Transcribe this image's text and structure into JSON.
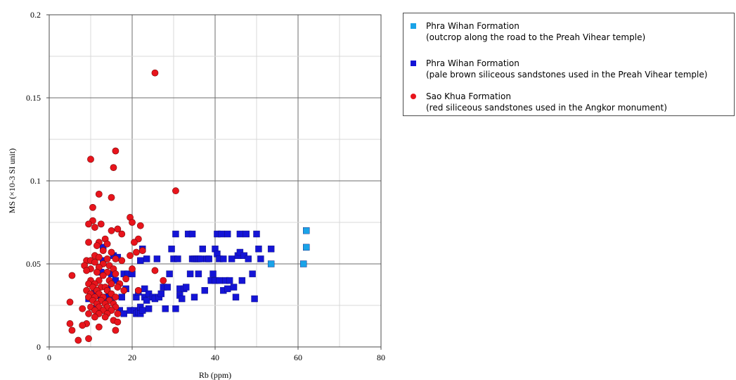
{
  "chart_data": {
    "type": "scatter",
    "title": "",
    "xlabel": "Rb (ppm)",
    "ylabel": "MS (×10-3 SI unit)",
    "xlim": [
      0,
      80
    ],
    "ylim": [
      0,
      0.2
    ],
    "x_ticks": [
      "0",
      "20",
      "40",
      "60",
      "80"
    ],
    "y_ticks": [
      "0",
      "0.05",
      "0.1",
      "0.15",
      "0.2"
    ],
    "grid": true,
    "legend_position": "right",
    "series": [
      {
        "name": "Phra Wihan Formation",
        "description": "(outcrop along the road to the Preah Vihear temple)",
        "marker": "square",
        "color": "#1aa3e8",
        "points": [
          [
            53.5,
            0.05
          ],
          [
            61.3,
            0.05
          ],
          [
            62.0,
            0.06
          ],
          [
            62.0,
            0.07
          ]
        ]
      },
      {
        "name": "Phra Wihan Formation",
        "description": "(pale brown siliceous sandstones used in the Preah Vihear temple)",
        "marker": "square",
        "color": "#1414d6",
        "points": [
          [
            9.5,
            0.029
          ],
          [
            10.5,
            0.032
          ],
          [
            11,
            0.033
          ],
          [
            11.5,
            0.026
          ],
          [
            12,
            0.031
          ],
          [
            12.5,
            0.028
          ],
          [
            12.5,
            0.045
          ],
          [
            13,
            0.052
          ],
          [
            13,
            0.06
          ],
          [
            13.5,
            0.03
          ],
          [
            14,
            0.035
          ],
          [
            14.5,
            0.03
          ],
          [
            15,
            0.03
          ],
          [
            15,
            0.044
          ],
          [
            15.5,
            0.055
          ],
          [
            16,
            0.04
          ],
          [
            16.5,
            0.054
          ],
          [
            17,
            0.022
          ],
          [
            17.5,
            0.03
          ],
          [
            18,
            0.02
          ],
          [
            18,
            0.044
          ],
          [
            18.5,
            0.035
          ],
          [
            19,
            0.044
          ],
          [
            19.5,
            0.022
          ],
          [
            20,
            0.044
          ],
          [
            20.5,
            0.022
          ],
          [
            21,
            0.02
          ],
          [
            21,
            0.03
          ],
          [
            21.5,
            0.021
          ],
          [
            21.5,
            0.033
          ],
          [
            22,
            0.02
          ],
          [
            22,
            0.024
          ],
          [
            22,
            0.052
          ],
          [
            22.5,
            0.059
          ],
          [
            22.5,
            0.022
          ],
          [
            23,
            0.03
          ],
          [
            23,
            0.035
          ],
          [
            23.5,
            0.028
          ],
          [
            23.5,
            0.053
          ],
          [
            24,
            0.023
          ],
          [
            24,
            0.032
          ],
          [
            25,
            0.03
          ],
          [
            25.5,
            0.029
          ],
          [
            26,
            0.053
          ],
          [
            26.5,
            0.03
          ],
          [
            27,
            0.032
          ],
          [
            27.5,
            0.036
          ],
          [
            28,
            0.023
          ],
          [
            28.5,
            0.036
          ],
          [
            29,
            0.044
          ],
          [
            29.5,
            0.059
          ],
          [
            30,
            0.053
          ],
          [
            30.5,
            0.068
          ],
          [
            30.5,
            0.023
          ],
          [
            31,
            0.053
          ],
          [
            31.5,
            0.035
          ],
          [
            31.5,
            0.031
          ],
          [
            32,
            0.029
          ],
          [
            32.5,
            0.035
          ],
          [
            33,
            0.036
          ],
          [
            33.5,
            0.068
          ],
          [
            34,
            0.044
          ],
          [
            34.5,
            0.068
          ],
          [
            34.5,
            0.053
          ],
          [
            35,
            0.03
          ],
          [
            35,
            0.053
          ],
          [
            35.5,
            0.053
          ],
          [
            36,
            0.044
          ],
          [
            36,
            0.053
          ],
          [
            36.5,
            0.053
          ],
          [
            37,
            0.059
          ],
          [
            37.5,
            0.034
          ],
          [
            38,
            0.053
          ],
          [
            38.5,
            0.053
          ],
          [
            39,
            0.04
          ],
          [
            39.5,
            0.044
          ],
          [
            40,
            0.059
          ],
          [
            40,
            0.04
          ],
          [
            40.5,
            0.068
          ],
          [
            40.5,
            0.056
          ],
          [
            41,
            0.053
          ],
          [
            41,
            0.04
          ],
          [
            41.5,
            0.068
          ],
          [
            42,
            0.034
          ],
          [
            42,
            0.053
          ],
          [
            42.5,
            0.04
          ],
          [
            43,
            0.068
          ],
          [
            43,
            0.035
          ],
          [
            43.5,
            0.04
          ],
          [
            44,
            0.053
          ],
          [
            44.5,
            0.036
          ],
          [
            45,
            0.03
          ],
          [
            45.5,
            0.055
          ],
          [
            46,
            0.068
          ],
          [
            46,
            0.057
          ],
          [
            46.5,
            0.04
          ],
          [
            47,
            0.055
          ],
          [
            47.5,
            0.068
          ],
          [
            48,
            0.053
          ],
          [
            49,
            0.044
          ],
          [
            49.5,
            0.029
          ],
          [
            50,
            0.068
          ],
          [
            50.5,
            0.059
          ],
          [
            51,
            0.053
          ],
          [
            53.5,
            0.059
          ]
        ]
      },
      {
        "name": "Sao Khua Formation",
        "description": "(red siliceous sandstones used in the Angkor monument)",
        "marker": "circle",
        "color": "#e8141c",
        "points": [
          [
            25.5,
            0.165
          ],
          [
            16,
            0.118
          ],
          [
            10,
            0.113
          ],
          [
            15.5,
            0.108
          ],
          [
            30.5,
            0.094
          ],
          [
            12,
            0.092
          ],
          [
            15,
            0.09
          ],
          [
            10.5,
            0.084
          ],
          [
            19.5,
            0.078
          ],
          [
            10.5,
            0.076
          ],
          [
            12.5,
            0.074
          ],
          [
            20,
            0.075
          ],
          [
            22,
            0.073
          ],
          [
            9.5,
            0.074
          ],
          [
            11,
            0.072
          ],
          [
            16.5,
            0.071
          ],
          [
            15,
            0.07
          ],
          [
            21.5,
            0.065
          ],
          [
            13.5,
            0.065
          ],
          [
            9.5,
            0.063
          ],
          [
            12,
            0.063
          ],
          [
            20.5,
            0.063
          ],
          [
            17.5,
            0.068
          ],
          [
            14,
            0.062
          ],
          [
            11.5,
            0.061
          ],
          [
            13,
            0.058
          ],
          [
            22.5,
            0.058
          ],
          [
            15,
            0.057
          ],
          [
            21,
            0.057
          ],
          [
            11,
            0.055
          ],
          [
            19.5,
            0.055
          ],
          [
            12,
            0.054
          ],
          [
            14,
            0.053
          ],
          [
            16,
            0.053
          ],
          [
            9,
            0.052
          ],
          [
            10,
            0.052
          ],
          [
            17.5,
            0.052
          ],
          [
            11,
            0.051
          ],
          [
            13,
            0.05
          ],
          [
            14.5,
            0.049
          ],
          [
            8.5,
            0.049
          ],
          [
            10,
            0.047
          ],
          [
            12,
            0.048
          ],
          [
            15.5,
            0.047
          ],
          [
            20,
            0.047
          ],
          [
            25.5,
            0.046
          ],
          [
            9,
            0.046
          ],
          [
            11.5,
            0.045
          ],
          [
            14,
            0.045
          ],
          [
            16,
            0.044
          ],
          [
            5.5,
            0.043
          ],
          [
            13,
            0.043
          ],
          [
            18.5,
            0.041
          ],
          [
            10,
            0.04
          ],
          [
            12,
            0.04
          ],
          [
            14.5,
            0.04
          ],
          [
            27.5,
            0.04
          ],
          [
            9.5,
            0.038
          ],
          [
            11,
            0.038
          ],
          [
            15,
            0.038
          ],
          [
            17,
            0.038
          ],
          [
            10.5,
            0.036
          ],
          [
            12.5,
            0.036
          ],
          [
            13.5,
            0.036
          ],
          [
            16.5,
            0.036
          ],
          [
            9,
            0.034
          ],
          [
            11.5,
            0.034
          ],
          [
            14,
            0.034
          ],
          [
            18,
            0.034
          ],
          [
            21.5,
            0.034
          ],
          [
            10,
            0.032
          ],
          [
            12,
            0.032
          ],
          [
            15,
            0.032
          ],
          [
            9.5,
            0.03
          ],
          [
            11,
            0.03
          ],
          [
            13,
            0.03
          ],
          [
            16,
            0.03
          ],
          [
            10.5,
            0.028
          ],
          [
            12.5,
            0.028
          ],
          [
            14.5,
            0.028
          ],
          [
            5,
            0.027
          ],
          [
            11.5,
            0.026
          ],
          [
            13.5,
            0.026
          ],
          [
            15.5,
            0.026
          ],
          [
            10,
            0.024
          ],
          [
            12,
            0.024
          ],
          [
            14,
            0.024
          ],
          [
            16,
            0.024
          ],
          [
            8,
            0.023
          ],
          [
            11,
            0.022
          ],
          [
            13,
            0.022
          ],
          [
            15,
            0.022
          ],
          [
            9.5,
            0.02
          ],
          [
            12,
            0.02
          ],
          [
            14,
            0.02
          ],
          [
            16.5,
            0.02
          ],
          [
            11,
            0.018
          ],
          [
            13.5,
            0.018
          ],
          [
            15.5,
            0.016
          ],
          [
            16.5,
            0.015
          ],
          [
            9,
            0.014
          ],
          [
            5,
            0.014
          ],
          [
            12,
            0.012
          ],
          [
            8,
            0.013
          ],
          [
            5.5,
            0.01
          ],
          [
            16,
            0.01
          ],
          [
            7,
            0.004
          ],
          [
            9.5,
            0.005
          ]
        ]
      }
    ]
  }
}
